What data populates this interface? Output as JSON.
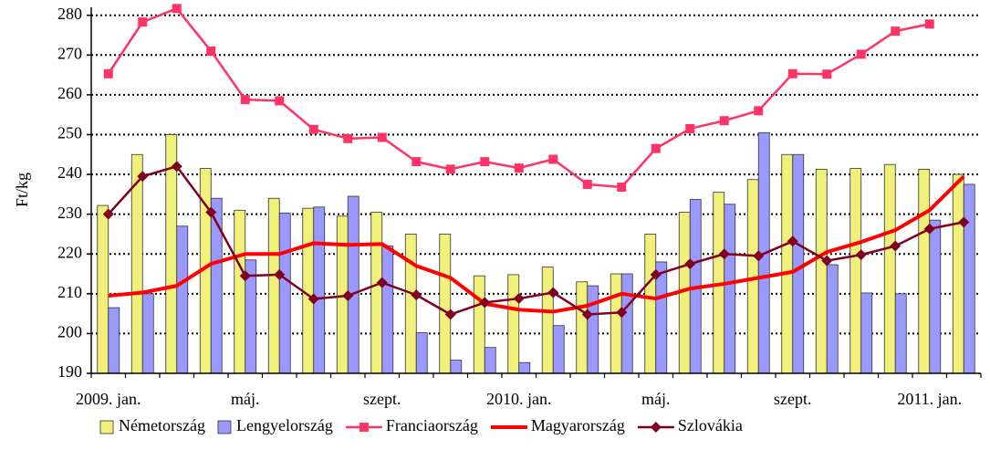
{
  "chart_data": {
    "type": "bar-line",
    "y_label": "Ft/kg",
    "categories": [
      "2009. jan.",
      null,
      null,
      null,
      "máj.",
      null,
      null,
      null,
      "szept.",
      null,
      null,
      null,
      "2010. jan.",
      null,
      null,
      null,
      "máj.",
      null,
      null,
      null,
      "szept.",
      null,
      null,
      null,
      "2011. jan.",
      null
    ],
    "series": [
      {
        "name": "Németország",
        "kind": "bar",
        "color": "#f0f07a",
        "values": [
          232.2,
          245,
          250,
          241.5,
          231,
          234,
          231.5,
          229.5,
          230.5,
          225,
          225,
          214.5,
          214.8,
          216.7,
          213,
          215,
          225,
          230.5,
          235.5,
          238.7,
          245,
          241.3,
          241.5,
          242.5,
          241.3,
          240
        ]
      },
      {
        "name": "Lengyelország",
        "kind": "bar",
        "color": "#9999ff",
        "values": [
          206.5,
          210,
          227,
          234,
          218.5,
          230.3,
          231.8,
          234.5,
          222,
          200.2,
          193.3,
          196.5,
          192.7,
          202,
          212,
          215,
          218,
          233.7,
          232.5,
          250.5,
          245,
          217.3,
          210.2,
          210,
          228.5,
          237.5
        ]
      },
      {
        "name": "Franciaország",
        "kind": "line",
        "marker": "square",
        "color": "#ff3366",
        "values": [
          265.3,
          278.3,
          281.7,
          271,
          258.8,
          258.5,
          251.3,
          249,
          249.3,
          243.2,
          241.3,
          243.2,
          241.6,
          243.8,
          237.5,
          236.8,
          246.5,
          251.5,
          253.5,
          256,
          265.3,
          265.2,
          270.2,
          276,
          277.8,
          null
        ]
      },
      {
        "name": "Magyarország",
        "kind": "line",
        "marker": "none",
        "color": "#ff0000",
        "values": [
          209.5,
          210.3,
          212,
          217.5,
          220,
          220,
          222.7,
          222.3,
          222.5,
          217,
          214,
          207.5,
          206,
          205.5,
          207,
          210,
          208.8,
          211.3,
          212.5,
          214,
          215.5,
          220.5,
          223,
          226,
          231,
          239.5
        ]
      },
      {
        "name": "Szlovákia",
        "kind": "line",
        "marker": "diamond",
        "color": "#800020",
        "values": [
          230,
          239.5,
          242,
          230.5,
          214.5,
          214.8,
          208.7,
          209.5,
          212.8,
          209.7,
          204.8,
          207.8,
          208.8,
          210.3,
          204.8,
          205.3,
          214.8,
          217.5,
          220,
          219.5,
          223.2,
          218.3,
          219.8,
          222,
          226.3,
          228
        ]
      }
    ],
    "ylim": [
      190,
      282
    ],
    "yticks": [
      190,
      200,
      210,
      220,
      230,
      240,
      250,
      260,
      270,
      280
    ],
    "grid": true,
    "legend": "bottom"
  }
}
